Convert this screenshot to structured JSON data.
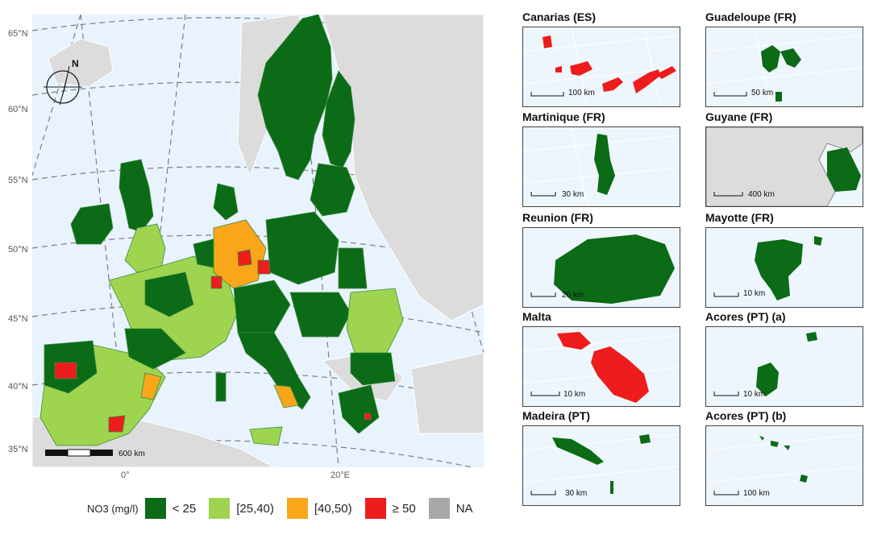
{
  "main_map": {
    "lat_labels": [
      "65°N",
      "60°N",
      "55°N",
      "50°N",
      "45°N",
      "40°N",
      "35°N"
    ],
    "lon_labels": [
      "0°",
      "20°E"
    ],
    "scale_label": "600 km",
    "north_label": "N"
  },
  "legend": {
    "title": "NO3 (mg/l)",
    "items": [
      {
        "label": "< 25",
        "color": "#0b6b16"
      },
      {
        "label": "[25,40)",
        "color": "#9fd44f"
      },
      {
        "label": "[40,50)",
        "color": "#f9a61a"
      },
      {
        "label": "≥ 50",
        "color": "#ee1c1c"
      },
      {
        "label": "NA",
        "color": "#a8a8a8"
      }
    ]
  },
  "insets": [
    {
      "title": "Canarias (ES)",
      "scale": "100 km"
    },
    {
      "title": "Guadeloupe (FR)",
      "scale": "50 km"
    },
    {
      "title": "Martinique (FR)",
      "scale": "30 km"
    },
    {
      "title": "Guyane (FR)",
      "scale": "400 km"
    },
    {
      "title": "Reunion (FR)",
      "scale": "20 km"
    },
    {
      "title": "Mayotte (FR)",
      "scale": "10 km"
    },
    {
      "title": "Malta",
      "scale": "10 km"
    },
    {
      "title": "Acores (PT) (a)",
      "scale": "10 km"
    },
    {
      "title": "Madeira (PT)",
      "scale": "30 km"
    },
    {
      "title": "Acores (PT) (b)",
      "scale": "100 km"
    }
  ]
}
